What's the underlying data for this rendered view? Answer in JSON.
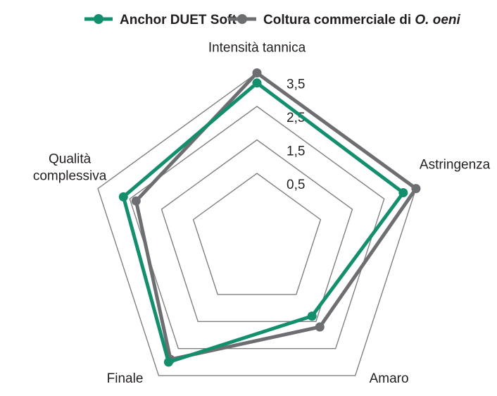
{
  "chart_data": {
    "type": "radar",
    "axes": [
      "Intensità tannica",
      "Astringenza",
      "Amaro",
      "Finale",
      "Qualità complessiva"
    ],
    "axis_labels": [
      "Intensità tannica",
      "Astringenza",
      "Amaro",
      "Finale",
      "Qualità\ncomplessiva"
    ],
    "ticks": [
      0.5,
      1.5,
      2.5,
      3.5
    ],
    "tick_labels": [
      "0,5",
      "1,5",
      "2,5",
      "3,5"
    ],
    "range": [
      -1.5,
      3.5
    ],
    "series": [
      {
        "name": "Anchor DUET Soft",
        "name_plain": "Anchor DUET Soft",
        "values": [
          3.2,
          3.1,
          1.3,
          3.0,
          2.7
        ],
        "color": "#138f6e"
      },
      {
        "name": "Coltura commerciale di O. oeni",
        "name_plain": "Coltura commerciale di ",
        "name_italic": "O. oeni",
        "values": [
          3.5,
          3.5,
          1.7,
          2.9,
          2.3
        ],
        "color": "#6d6e71"
      }
    ],
    "grid_color": "#808080",
    "legend_position": "top"
  }
}
